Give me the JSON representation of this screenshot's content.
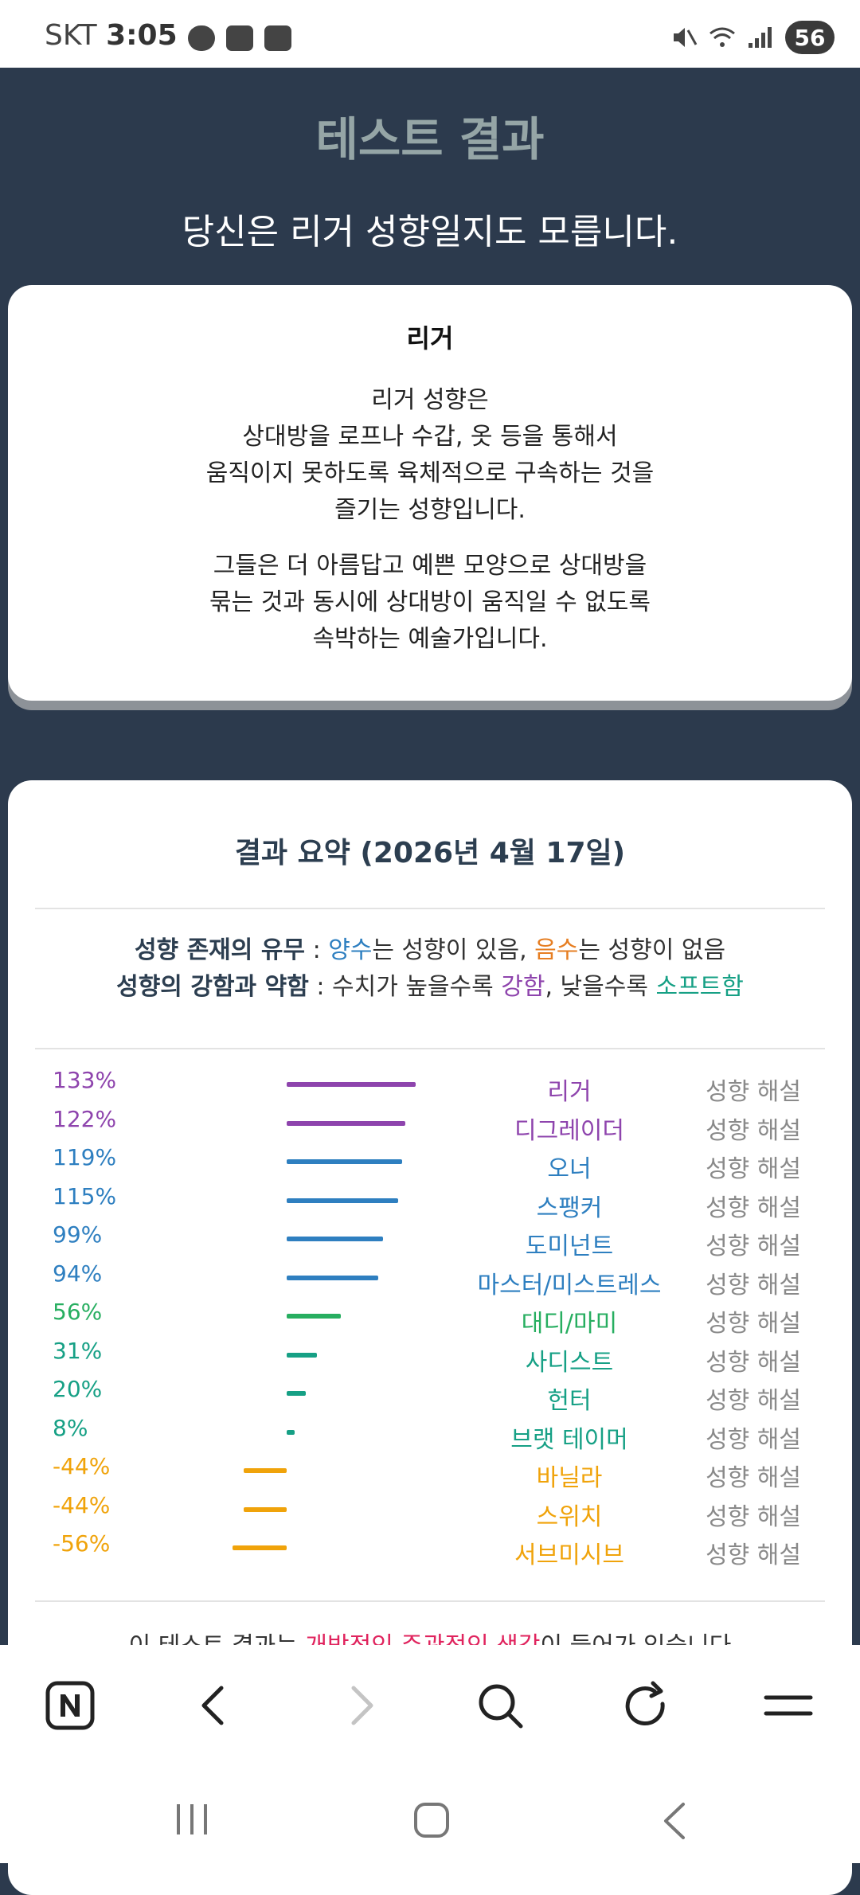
{
  "status": {
    "carrier": "SKT",
    "time": "3:05",
    "battery": "56"
  },
  "header": {
    "title": "테스트 결과",
    "subtitle": "당신은 리거 성향일지도 모릅니다."
  },
  "result_card": {
    "title": "리거",
    "paragraph1": [
      "리거 성향은",
      "상대방을 로프나 수갑, 옷 등을 통해서",
      "움직이지 못하도록 육체적으로 구속하는 것을",
      "즐기는 성향입니다."
    ],
    "paragraph2": [
      "그들은 더 아름답고 예쁜 모양으로 상대방을",
      "묶는 것과 동시에 상대방이 움직일 수 없도록",
      "속박하는 예술가입니다."
    ]
  },
  "summary": {
    "title": "결과 요약 (2026년 4월 17일)",
    "legend1": {
      "label": "성향 존재의 유무",
      "sep": " : ",
      "positive": "양수",
      "mid": "는 성향이 있음, ",
      "negative": "음수",
      "end": "는 성향이 없음"
    },
    "legend2": {
      "label": "성향의 강함과 약함",
      "sep": " : 수치가 높을수록 ",
      "strong": "강함",
      "mid": ", 낮을수록 ",
      "soft": "소프트함"
    },
    "interp_label": "성향 해설",
    "rows": [
      {
        "pct": "133%",
        "value": 133,
        "name": "리거",
        "color": "#8e44ad"
      },
      {
        "pct": "122%",
        "value": 122,
        "name": "디그레이더",
        "color": "#8e44ad"
      },
      {
        "pct": "119%",
        "value": 119,
        "name": "오너",
        "color": "#2e7fc0"
      },
      {
        "pct": "115%",
        "value": 115,
        "name": "스팽커",
        "color": "#2e7fc0"
      },
      {
        "pct": "99%",
        "value": 99,
        "name": "도미넌트",
        "color": "#2e7fc0"
      },
      {
        "pct": "94%",
        "value": 94,
        "name": "마스터/미스트레스",
        "color": "#2e7fc0"
      },
      {
        "pct": "56%",
        "value": 56,
        "name": "대디/마미",
        "color": "#27ae60"
      },
      {
        "pct": "31%",
        "value": 31,
        "name": "사디스트",
        "color": "#16a085"
      },
      {
        "pct": "20%",
        "value": 20,
        "name": "헌터",
        "color": "#16a085"
      },
      {
        "pct": "8%",
        "value": 8,
        "name": "브랫 테이머",
        "color": "#16a085"
      },
      {
        "pct": "-44%",
        "value": -44,
        "name": "바닐라",
        "color": "#f0a30a"
      },
      {
        "pct": "-44%",
        "value": -44,
        "name": "스위치",
        "color": "#f0a30a"
      },
      {
        "pct": "-56%",
        "value": -56,
        "name": "서브미시브",
        "color": "#f0a30a"
      }
    ],
    "footer": {
      "before": "이 테스트 결과는 ",
      "highlight": "개방적인 주관적인 생각",
      "after": "이 들어가 있습니다"
    }
  },
  "browser": {
    "icons": [
      "naver-icon",
      "back-icon",
      "forward-icon",
      "search-icon",
      "refresh-icon",
      "menu-icon"
    ]
  }
}
